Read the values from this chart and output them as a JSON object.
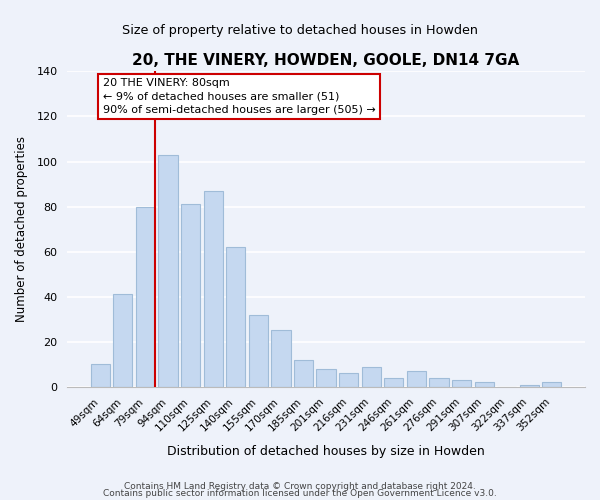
{
  "title": "20, THE VINERY, HOWDEN, GOOLE, DN14 7GA",
  "subtitle": "Size of property relative to detached houses in Howden",
  "xlabel": "Distribution of detached houses by size in Howden",
  "ylabel": "Number of detached properties",
  "bar_labels": [
    "49sqm",
    "64sqm",
    "79sqm",
    "94sqm",
    "110sqm",
    "125sqm",
    "140sqm",
    "155sqm",
    "170sqm",
    "185sqm",
    "201sqm",
    "216sqm",
    "231sqm",
    "246sqm",
    "261sqm",
    "276sqm",
    "291sqm",
    "307sqm",
    "322sqm",
    "337sqm",
    "352sqm"
  ],
  "bar_values": [
    10,
    41,
    80,
    103,
    81,
    87,
    62,
    32,
    25,
    12,
    8,
    6,
    9,
    4,
    7,
    4,
    3,
    2,
    0,
    1,
    2
  ],
  "bar_color": "#c5d8f0",
  "bar_edge_color": "#a0bcd8",
  "vline_index": 2,
  "vline_color": "#cc0000",
  "annotation_text": "20 THE VINERY: 80sqm\n← 9% of detached houses are smaller (51)\n90% of semi-detached houses are larger (505) →",
  "annotation_box_edgecolor": "#cc0000",
  "ylim": [
    0,
    140
  ],
  "yticks": [
    0,
    20,
    40,
    60,
    80,
    100,
    120,
    140
  ],
  "footer1": "Contains HM Land Registry data © Crown copyright and database right 2024.",
  "footer2": "Contains public sector information licensed under the Open Government Licence v3.0.",
  "bg_color": "#eef2fa",
  "plot_bg_color": "#eef2fa"
}
